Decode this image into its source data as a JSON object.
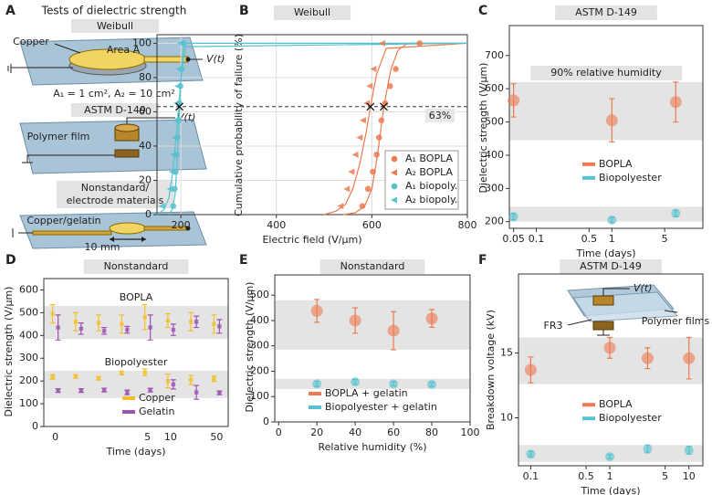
{
  "diagram": {
    "panel": "A",
    "title": "Tests of dielectric strength",
    "weibull": {
      "title": "Weibull",
      "labels": [
        "Copper",
        "Area A",
        "V(t)"
      ],
      "areas": "A₁ = 1 cm², A₂ = 10 cm²"
    },
    "astm": {
      "title": "ASTM D-149",
      "labels": [
        "Polymer film",
        "V(t)"
      ]
    },
    "nonstandard": {
      "title_lines": [
        "Nonstandard/",
        "electrode materials"
      ],
      "labels": [
        "Copper/gelatin",
        "10 mm"
      ]
    }
  },
  "chart_data": [
    {
      "panel": "B",
      "type": "scatter",
      "title": "Weibull",
      "xlabel": "Electric field (V/µm)",
      "ylabel": "Cumulative probability of failure (%)",
      "xlim": [
        150,
        800
      ],
      "ylim": [
        0,
        105
      ],
      "xticks": [
        200,
        400,
        600,
        800
      ],
      "yticks": [
        0,
        20,
        40,
        60,
        80,
        100
      ],
      "grid": true,
      "legend": "lower right",
      "legend_frame": true,
      "reference_line": {
        "value": 63,
        "label": "63%"
      },
      "crossings": [
        197,
        597,
        625
      ],
      "series": [
        {
          "name": "A₁ BOPLA",
          "color": "#ec7a50",
          "marker": "circle",
          "x": [
            580,
            592,
            602,
            610,
            615,
            620,
            628,
            638,
            650,
            700
          ],
          "values": [
            5,
            15,
            25,
            35,
            45,
            55,
            65,
            75,
            85,
            100
          ]
        },
        {
          "name": "A₂ BOPLA",
          "color": "#ec7a50",
          "marker": "triangle",
          "x": [
            535,
            548,
            558,
            566,
            575,
            582,
            590,
            596,
            604,
            622
          ],
          "values": [
            5,
            15,
            25,
            35,
            45,
            55,
            65,
            75,
            85,
            100
          ]
        },
        {
          "name": "A₁ biopoly.",
          "color": "#56c2cf",
          "marker": "circle",
          "x": [
            184,
            187,
            189,
            191,
            193,
            195,
            197,
            199,
            202,
            206
          ],
          "values": [
            5,
            15,
            25,
            35,
            45,
            55,
            65,
            75,
            85,
            100
          ]
        },
        {
          "name": "A₂ biopoly.",
          "color": "#56c2cf",
          "marker": "triangle",
          "x": [
            161,
            178,
            182,
            185,
            188,
            190,
            192,
            194,
            196,
            200
          ],
          "values": [
            5,
            15,
            25,
            35,
            45,
            55,
            65,
            75,
            85,
            100
          ]
        }
      ],
      "fits": [
        {
          "color": "#ec7a50",
          "x": [
            540,
            565,
            585,
            600,
            612,
            625,
            640,
            655,
            675,
            800
          ],
          "values": [
            0,
            1,
            5,
            15,
            35,
            63,
            85,
            96,
            100,
            100
          ]
        },
        {
          "color": "#ec7a50",
          "x": [
            500,
            525,
            545,
            560,
            575,
            588,
            597,
            610,
            630,
            800
          ],
          "values": [
            0,
            2,
            6,
            15,
            30,
            48,
            63,
            82,
            97,
            100
          ]
        },
        {
          "color": "#56c2cf",
          "x": [
            175,
            182,
            188,
            193,
            197,
            201,
            205,
            210,
            800
          ],
          "values": [
            0,
            3,
            12,
            35,
            60,
            85,
            97,
            100,
            100
          ]
        },
        {
          "color": "#56c2cf",
          "x": [
            150,
            165,
            175,
            183,
            190,
            196,
            202,
            210,
            800
          ],
          "values": [
            0,
            3,
            10,
            25,
            45,
            65,
            85,
            98,
            100
          ]
        }
      ]
    },
    {
      "panel": "C",
      "type": "errorbar",
      "title": "ASTM D-149",
      "annotation": "90% relative humidity",
      "xlabel": "Time (days)",
      "ylabel": "Dielectric strength (V/µm)",
      "xscale": "log",
      "xlim": [
        0.044,
        16
      ],
      "ylim": [
        180,
        790
      ],
      "xticks": [
        0.05,
        0.1,
        0.5,
        1,
        5
      ],
      "yticks": [
        200,
        300,
        400,
        500,
        600,
        700
      ],
      "legend": "center right",
      "bands": [
        [
          445,
          620
        ],
        [
          200,
          245
        ]
      ],
      "series": [
        {
          "name": "BOPLA",
          "color": "#ec7a50",
          "x": [
            0.05,
            1,
            7
          ],
          "values": [
            565,
            505,
            560
          ],
          "errors": [
            50,
            65,
            60
          ]
        },
        {
          "name": "Biopolyester",
          "color": "#56c2cf",
          "x": [
            0.05,
            1,
            7
          ],
          "values": [
            215,
            205,
            225
          ],
          "errors": [
            10,
            8,
            10
          ]
        }
      ]
    },
    {
      "panel": "D",
      "type": "categorical-errorbar",
      "title": "Nonstandard",
      "xlabel": "Time (days)",
      "ylabel": "Dielectric strength (V/µm)",
      "categories": [
        "0",
        null,
        null,
        null,
        "5",
        "10",
        null,
        "50"
      ],
      "ylim": [
        0,
        650
      ],
      "yticks": [
        0,
        100,
        200,
        300,
        400,
        500,
        600
      ],
      "legend": "lower right",
      "bands": [
        [
          385,
          530
        ],
        [
          125,
          245
        ]
      ],
      "groups": [
        {
          "label": "BOPLA",
          "series": [
            {
              "name": "Copper",
              "color": "#f3c02b",
              "values": [
                495,
                460,
                455,
                450,
                480,
                465,
                460,
                450
              ],
              "errors": [
                40,
                40,
                35,
                40,
                55,
                30,
                40,
                40
              ]
            },
            {
              "name": "Gelatin",
              "color": "#9e52b3",
              "values": [
                435,
                430,
                420,
                425,
                435,
                425,
                460,
                440
              ],
              "errors": [
                55,
                25,
                15,
                15,
                55,
                25,
                25,
                30
              ]
            }
          ]
        },
        {
          "label": "Biopolyester",
          "series": [
            {
              "name": "Copper",
              "color": "#f3c02b",
              "values": [
                218,
                220,
                212,
                235,
                238,
                200,
                205,
                210
              ],
              "errors": [
                10,
                8,
                8,
                8,
                15,
                30,
                20,
                12
              ]
            },
            {
              "name": "Gelatin",
              "color": "#9e52b3",
              "values": [
                158,
                158,
                160,
                150,
                160,
                185,
                150,
                148
              ],
              "errors": [
                8,
                8,
                8,
                10,
                8,
                20,
                30,
                8
              ]
            }
          ]
        }
      ]
    },
    {
      "panel": "E",
      "type": "errorbar",
      "title": "Nonstandard",
      "xlabel": "Relative humidity (%)",
      "ylabel": "Dielectric strength (V/µm)",
      "xlim": [
        -2,
        100
      ],
      "ylim": [
        0,
        580
      ],
      "xticks": [
        0,
        20,
        40,
        60,
        80,
        100
      ],
      "yticks": [
        0,
        100,
        200,
        300,
        400,
        500
      ],
      "legend": "lower center",
      "bands": [
        [
          285,
          480
        ],
        [
          130,
          170
        ]
      ],
      "series": [
        {
          "name": "BOPLA + gelatin",
          "color": "#ec7a50",
          "x": [
            20,
            40,
            60,
            80
          ],
          "values": [
            438,
            400,
            360,
            408
          ],
          "errors": [
            45,
            50,
            75,
            35
          ]
        },
        {
          "name": "Biopolyester + gelatin",
          "color": "#56c2cf",
          "x": [
            20,
            40,
            60,
            80
          ],
          "values": [
            150,
            158,
            150,
            148
          ],
          "errors": [
            10,
            10,
            8,
            8
          ]
        }
      ]
    },
    {
      "panel": "F",
      "type": "errorbar",
      "title": "ASTM D-149",
      "xlabel": "Time (days)",
      "ylabel": "Breakdown voltage (kV)",
      "xscale": "log",
      "xlim": [
        0.07,
        15
      ],
      "ylim": [
        6.3,
        21.1
      ],
      "xticks": [
        0.1,
        0.5,
        1,
        5,
        10
      ],
      "yticks": [
        10,
        15
      ],
      "legend": "center right",
      "bands": [
        [
          12.6,
          16.2
        ],
        [
          6.6,
          7.9
        ]
      ],
      "annotations": [
        "V(t)",
        "Polymer films",
        "FR3"
      ],
      "series": [
        {
          "name": "BOPLA",
          "color": "#ec7a50",
          "x": [
            0.1,
            1,
            3,
            10
          ],
          "values": [
            13.7,
            15.4,
            14.6,
            14.6
          ],
          "errors": [
            1.0,
            0.8,
            0.8,
            1.6
          ]
        },
        {
          "name": "Biopolyester",
          "color": "#56c2cf",
          "x": [
            0.1,
            1,
            3,
            10
          ],
          "values": [
            7.2,
            7.0,
            7.6,
            7.5
          ],
          "errors": [
            0.2,
            0.15,
            0.3,
            0.3
          ]
        }
      ]
    }
  ]
}
